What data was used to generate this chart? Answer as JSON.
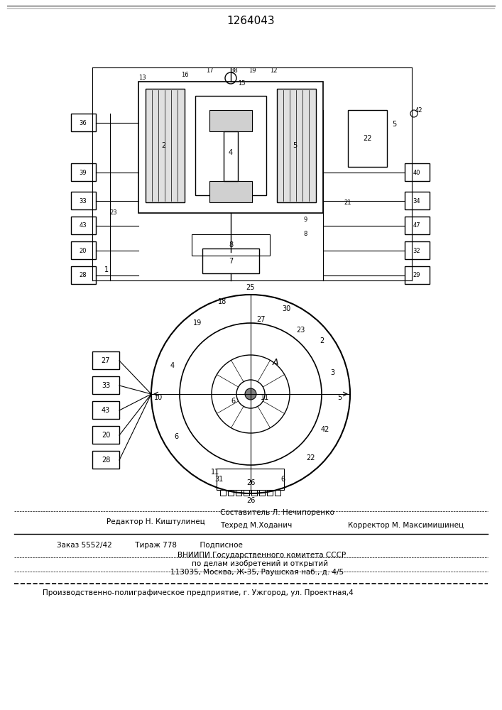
{
  "patent_number": "1264043",
  "bg_color": "#ffffff",
  "line_color": "#000000",
  "fig_width": 7.07,
  "fig_height": 10.0,
  "footer": {
    "line1_left": "Редактор Н. Киштулинец",
    "line1_center": "Составитель Л. Нечипоренко",
    "line1_right": "",
    "line2_left": "",
    "line2_center": "Техред М.Ходанич",
    "line2_right": "Корректор М. Максимишинец",
    "line3": "Заказ 5552/42          Тираж 778          Подписное",
    "line4": "ВНИИПИ Государственного комитета СССР",
    "line5": "по делам изобретений и открытий",
    "line6": "113035, Москва, Ж-35, Раушская наб., д. 4/5",
    "line7": "Производственно-полиграфическое предприятие, г. Ужгород, ул. Проектная,4"
  }
}
